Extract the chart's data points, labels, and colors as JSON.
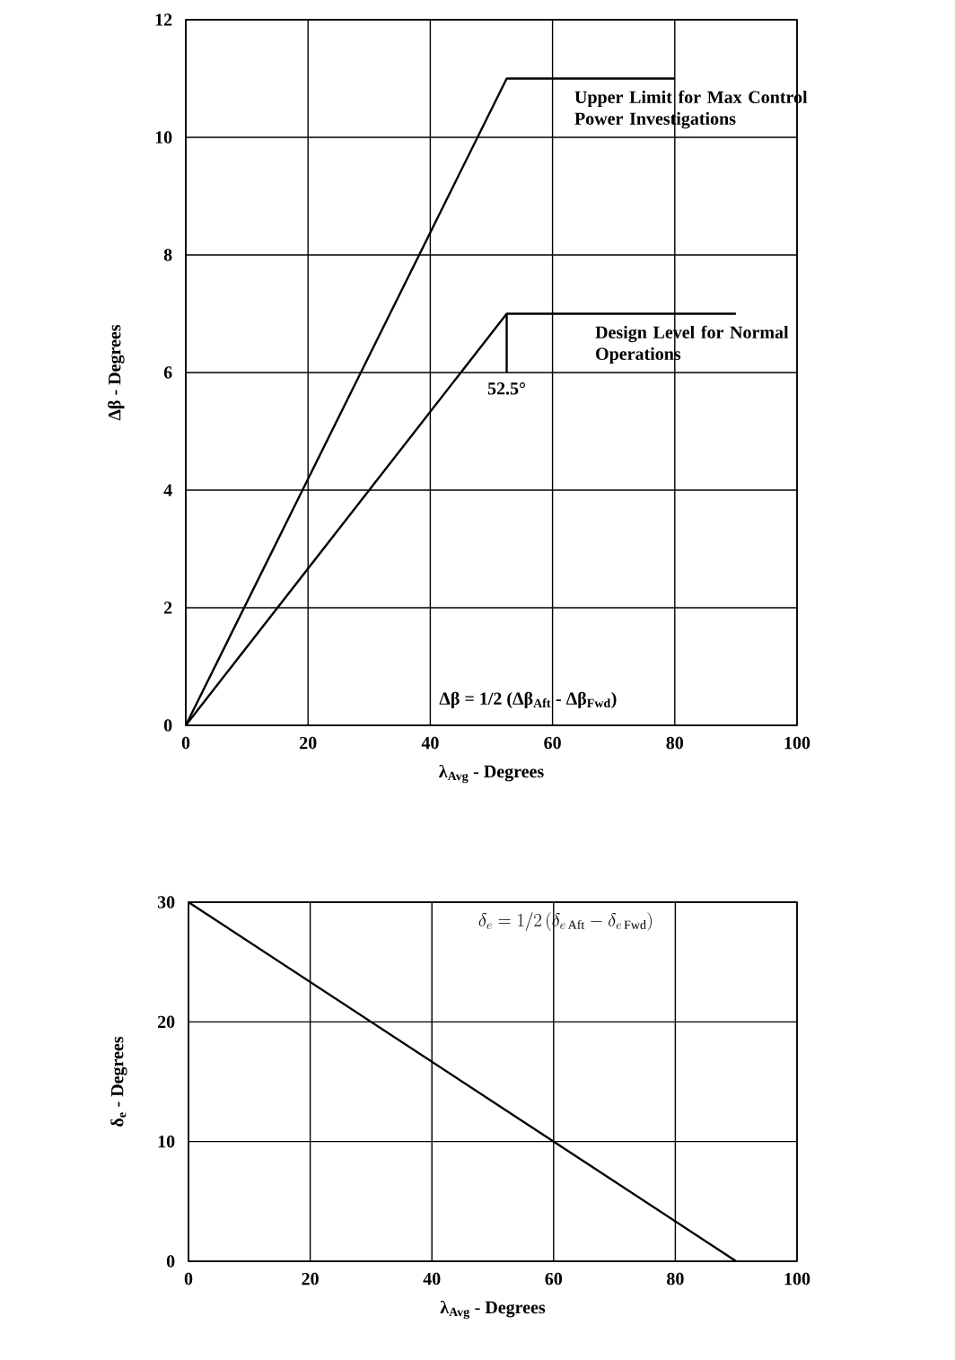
{
  "chart_data": [
    {
      "type": "line",
      "xlabel": "λ$_{Avg}$ - Degrees",
      "ylabel": "Δβ  -  Degrees",
      "xlim": [
        0,
        100
      ],
      "ylim": [
        0,
        12
      ],
      "xticks": [
        0,
        20,
        40,
        60,
        80,
        100
      ],
      "yticks": [
        0,
        2,
        4,
        6,
        8,
        10,
        12
      ],
      "grid": true,
      "series": [
        {
          "color": "#000000",
          "x": [
            0,
            52.5,
            80
          ],
          "values": [
            0,
            11,
            11
          ]
        },
        {
          "color": "#000000",
          "x": [
            0,
            52.5,
            90
          ],
          "values": [
            0,
            7,
            7
          ]
        },
        {
          "color": "#000000",
          "x": [
            52.5,
            52.5
          ],
          "values": [
            7,
            6
          ]
        }
      ],
      "annotations": [
        {
          "text": "Upper Limit for Max Control Power Investigations",
          "x": 80,
          "y": 11
        },
        {
          "text": "Design Level for Normal Operations",
          "x": 90,
          "y": 7
        },
        "52.5°",
        "Δβ = 1/2 (Δβ$_{Aft}$ - Δβ$_{Fwd}$)"
      ]
    },
    {
      "type": "line",
      "xlabel": "λ$_{Avg}$ - Degrees",
      "ylabel": "δ$_{e}$ - Degrees",
      "xlim": [
        0,
        100
      ],
      "ylim": [
        0,
        30
      ],
      "xticks": [
        0,
        20,
        40,
        60,
        80,
        100
      ],
      "yticks": [
        0,
        10,
        20,
        30
      ],
      "grid": true,
      "series": [
        {
          "color": "#000000",
          "x": [
            0,
            90
          ],
          "values": [
            30,
            0
          ]
        }
      ],
      "annotations": [
        "\\delta_e = 1/2\\,(\\delta_{e\\,\\mathrm{Aft}} - \\delta_{e\\,\\mathrm{Fwd}})"
      ]
    }
  ]
}
